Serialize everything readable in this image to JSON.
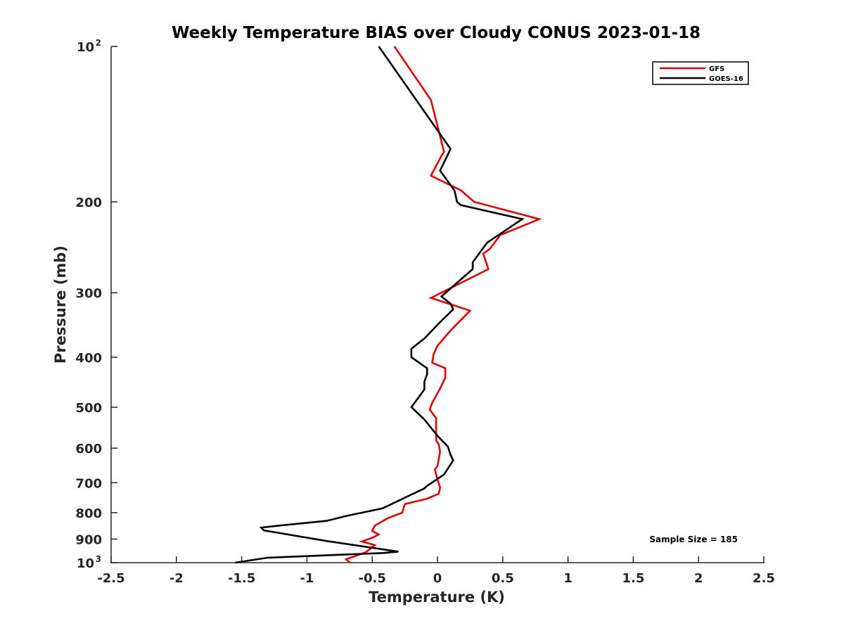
{
  "chart_data": {
    "type": "line",
    "title": "Weekly Temperature BIAS over Cloudy CONUS 2023-01-18",
    "xlabel": "Temperature (K)",
    "ylabel": "Pressure (mb)",
    "xlim": [
      -2.5,
      2.5
    ],
    "ylim": [
      100,
      1000
    ],
    "y_scale": "log",
    "y_reversed": true,
    "grid": false,
    "legend_position": "top-right",
    "x_ticks": [
      "-2.5",
      "-2",
      "-1.5",
      "-1",
      "-0.5",
      "0",
      "0.5",
      "1",
      "1.5",
      "2",
      "2.5"
    ],
    "y_ticks": [
      {
        "value": 100,
        "label": "10",
        "sup": "2"
      },
      {
        "value": 200,
        "label": "200"
      },
      {
        "value": 300,
        "label": "300"
      },
      {
        "value": 400,
        "label": "400"
      },
      {
        "value": 500,
        "label": "500"
      },
      {
        "value": 600,
        "label": "600"
      },
      {
        "value": 700,
        "label": "700"
      },
      {
        "value": 800,
        "label": "800"
      },
      {
        "value": 900,
        "label": "900"
      },
      {
        "value": 1000,
        "label": "10",
        "sup": "3"
      }
    ],
    "series": [
      {
        "name": "GFS",
        "color": "#e00000",
        "points": [
          [
            -0.33,
            100
          ],
          [
            -0.05,
            127
          ],
          [
            0.05,
            160
          ],
          [
            0.03,
            163
          ],
          [
            -0.05,
            178
          ],
          [
            0.18,
            190
          ],
          [
            0.28,
            200
          ],
          [
            0.78,
            216
          ],
          [
            0.48,
            232
          ],
          [
            0.4,
            247
          ],
          [
            0.35,
            252
          ],
          [
            0.39,
            270
          ],
          [
            -0.05,
            307
          ],
          [
            0.25,
            325
          ],
          [
            0.1,
            355
          ],
          [
            0.0,
            380
          ],
          [
            -0.03,
            395
          ],
          [
            -0.04,
            410
          ],
          [
            0.06,
            420
          ],
          [
            0.06,
            438
          ],
          [
            0.02,
            460
          ],
          [
            -0.04,
            490
          ],
          [
            -0.06,
            505
          ],
          [
            -0.01,
            525
          ],
          [
            -0.01,
            580
          ],
          [
            0.01,
            590
          ],
          [
            0.02,
            610
          ],
          [
            0.0,
            650
          ],
          [
            -0.02,
            660
          ],
          [
            0.0,
            690
          ],
          [
            0.02,
            715
          ],
          [
            0.01,
            735
          ],
          [
            -0.08,
            752
          ],
          [
            -0.25,
            770
          ],
          [
            -0.27,
            800
          ],
          [
            -0.38,
            820
          ],
          [
            -0.48,
            848
          ],
          [
            -0.5,
            868
          ],
          [
            -0.45,
            882
          ],
          [
            -0.5,
            895
          ],
          [
            -0.58,
            910
          ],
          [
            -0.48,
            925
          ],
          [
            -0.55,
            955
          ],
          [
            -0.7,
            985
          ],
          [
            -0.67,
            1000
          ]
        ]
      },
      {
        "name": "GOES-16",
        "color": "#000000",
        "points": [
          [
            -0.45,
            100
          ],
          [
            0.1,
            158
          ],
          [
            0.02,
            174
          ],
          [
            0.13,
            190
          ],
          [
            0.15,
            200
          ],
          [
            0.18,
            203
          ],
          [
            0.65,
            216
          ],
          [
            0.38,
            240
          ],
          [
            0.27,
            262
          ],
          [
            0.27,
            270
          ],
          [
            0.03,
            305
          ],
          [
            0.1,
            315
          ],
          [
            0.12,
            323
          ],
          [
            0.02,
            342
          ],
          [
            -0.1,
            368
          ],
          [
            -0.2,
            385
          ],
          [
            -0.2,
            400
          ],
          [
            -0.08,
            420
          ],
          [
            -0.08,
            432
          ],
          [
            -0.1,
            446
          ],
          [
            -0.1,
            462
          ],
          [
            -0.2,
            500
          ],
          [
            -0.1,
            528
          ],
          [
            0.0,
            568
          ],
          [
            0.08,
            596
          ],
          [
            0.1,
            618
          ],
          [
            0.12,
            634
          ],
          [
            0.05,
            675
          ],
          [
            -0.08,
            710
          ],
          [
            -0.1,
            718
          ],
          [
            -0.22,
            742
          ],
          [
            -0.42,
            785
          ],
          [
            -0.7,
            812
          ],
          [
            -0.85,
            830
          ],
          [
            -1.2,
            847
          ],
          [
            -1.35,
            855
          ],
          [
            -1.33,
            866
          ],
          [
            -0.85,
            908
          ],
          [
            -0.3,
            952
          ],
          [
            -0.42,
            958
          ],
          [
            -1.3,
            978
          ],
          [
            -1.55,
            1000
          ]
        ]
      }
    ],
    "annotation": "Sample Size = 185"
  }
}
